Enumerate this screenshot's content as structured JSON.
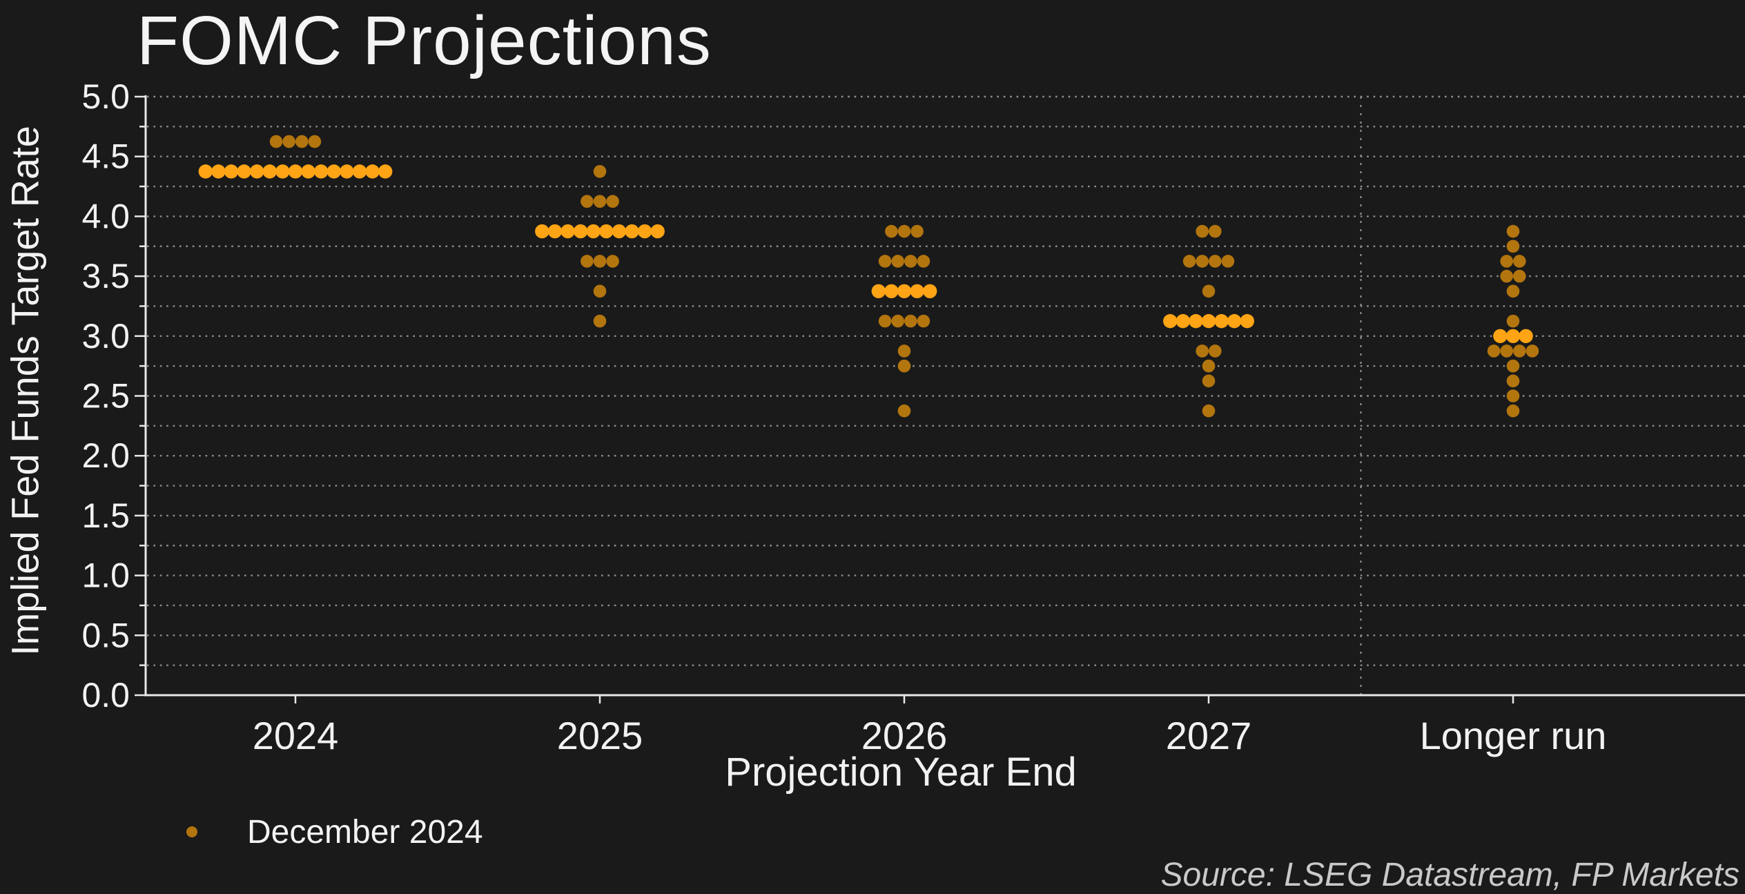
{
  "header": {
    "title": "FOMC Projections"
  },
  "axes": {
    "ylabel": "Implied Fed Funds Target Rate",
    "xlabel": "Projection Year End"
  },
  "legend": {
    "label": "December 2024"
  },
  "source": {
    "text": "Source: LSEG Datastream, FP Markets"
  },
  "colors": {
    "background": "#1a1a1a",
    "dot": "#b3750e",
    "dot_median": "#ffa414",
    "gridline": "#8f8f8f",
    "spine": "#e8e8e8",
    "text": "#f2f2f2"
  },
  "chart_data": {
    "type": "scatter",
    "subtype": "fomc-dot-plot",
    "title": "FOMC Projections",
    "xlabel": "Projection Year End",
    "ylabel": "Implied Fed Funds Target Rate",
    "ylim": [
      0.0,
      5.0
    ],
    "yticks_labeled": [
      "0.0",
      "0.5",
      "1.0",
      "1.5",
      "2.0",
      "2.5",
      "3.0",
      "3.5",
      "4.0",
      "4.5",
      "5.0"
    ],
    "ytick_minor_step": 0.25,
    "grid": "dotted horizontal line every 0.25",
    "legend_entries": [
      "December 2024"
    ],
    "legend_position": "bottom-left",
    "categories": [
      "2024",
      "2025",
      "2026",
      "2027",
      "Longer run"
    ],
    "separator": {
      "between": [
        "2027",
        "Longer run"
      ],
      "style": "dotted vertical line"
    },
    "distributions": [
      {
        "category": "2024",
        "rows": [
          {
            "rate": 4.625,
            "count": 4
          },
          {
            "rate": 4.375,
            "count": 15,
            "median": true
          }
        ]
      },
      {
        "category": "2025",
        "rows": [
          {
            "rate": 4.375,
            "count": 1
          },
          {
            "rate": 4.125,
            "count": 3
          },
          {
            "rate": 3.875,
            "count": 10,
            "median": true
          },
          {
            "rate": 3.625,
            "count": 3
          },
          {
            "rate": 3.375,
            "count": 1
          },
          {
            "rate": 3.125,
            "count": 1
          }
        ]
      },
      {
        "category": "2026",
        "rows": [
          {
            "rate": 3.875,
            "count": 3
          },
          {
            "rate": 3.625,
            "count": 4
          },
          {
            "rate": 3.375,
            "count": 5,
            "median": true
          },
          {
            "rate": 3.125,
            "count": 4
          },
          {
            "rate": 2.875,
            "count": 1
          },
          {
            "rate": 2.75,
            "count": 1
          },
          {
            "rate": 2.375,
            "count": 1
          }
        ]
      },
      {
        "category": "2027",
        "rows": [
          {
            "rate": 3.875,
            "count": 2
          },
          {
            "rate": 3.625,
            "count": 4
          },
          {
            "rate": 3.375,
            "count": 1
          },
          {
            "rate": 3.125,
            "count": 7,
            "median": true
          },
          {
            "rate": 2.875,
            "count": 2
          },
          {
            "rate": 2.75,
            "count": 1
          },
          {
            "rate": 2.625,
            "count": 1
          },
          {
            "rate": 2.375,
            "count": 1
          }
        ]
      },
      {
        "category": "Longer run",
        "rows": [
          {
            "rate": 3.875,
            "count": 1
          },
          {
            "rate": 3.75,
            "count": 1
          },
          {
            "rate": 3.625,
            "count": 2
          },
          {
            "rate": 3.5,
            "count": 2
          },
          {
            "rate": 3.375,
            "count": 1
          },
          {
            "rate": 3.125,
            "count": 1
          },
          {
            "rate": 3.0,
            "count": 3,
            "median": true
          },
          {
            "rate": 2.875,
            "count": 4
          },
          {
            "rate": 2.75,
            "count": 1
          },
          {
            "rate": 2.625,
            "count": 1
          },
          {
            "rate": 2.5,
            "count": 1
          },
          {
            "rate": 2.375,
            "count": 1
          }
        ]
      }
    ]
  }
}
